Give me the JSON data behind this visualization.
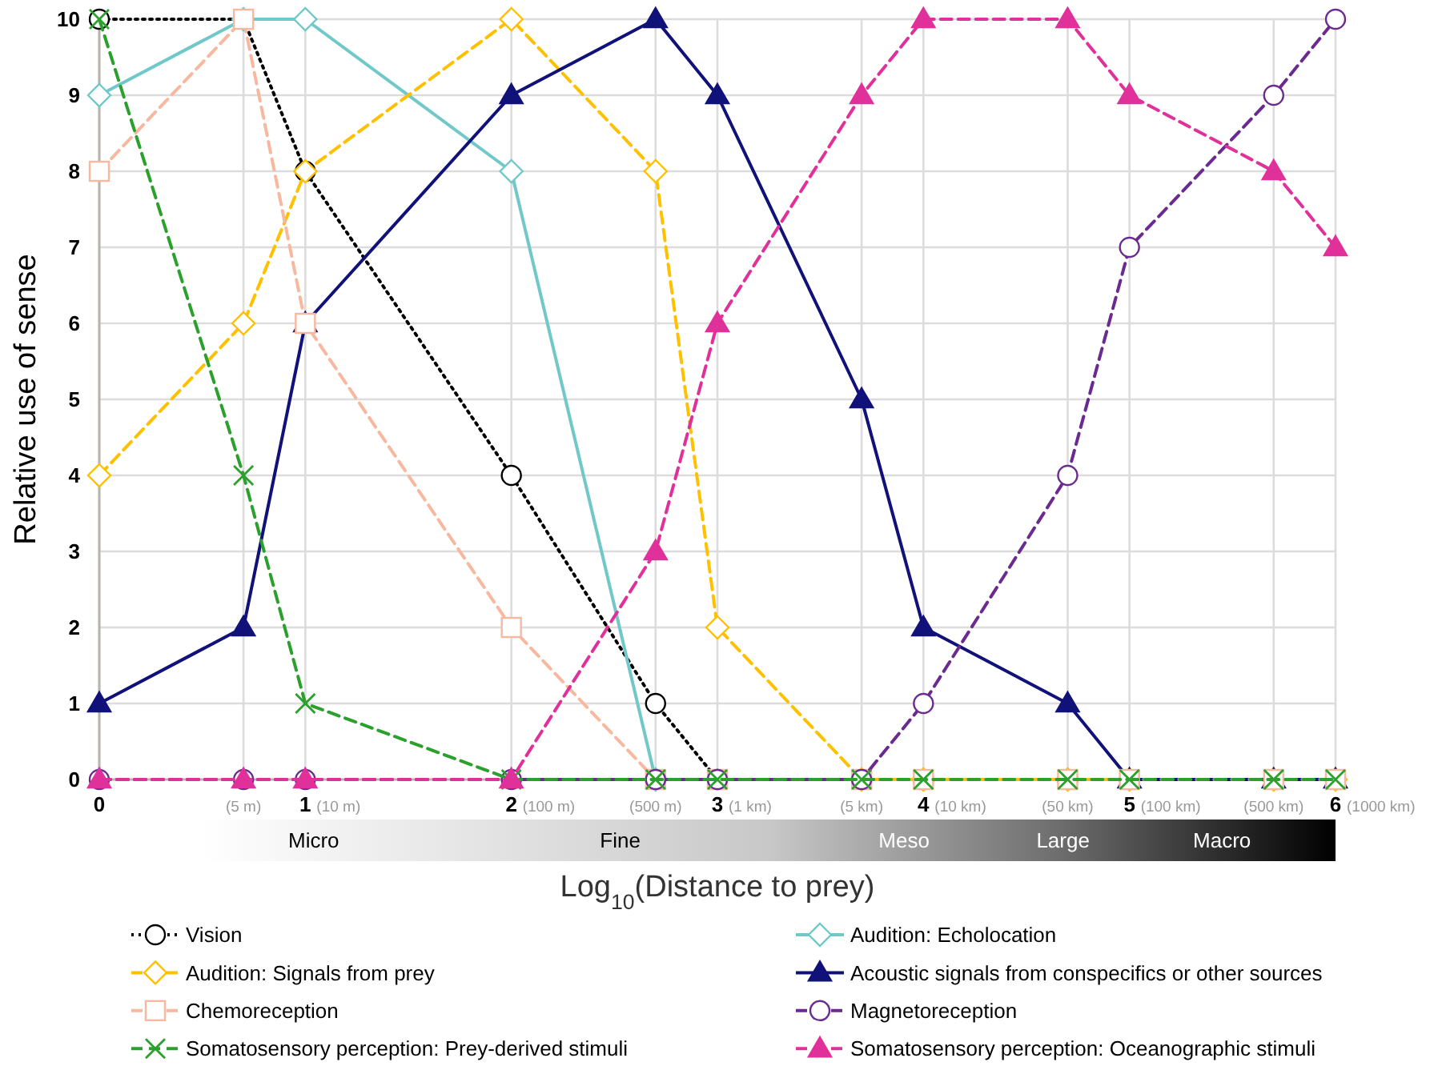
{
  "chart_data": {
    "type": "line",
    "xlabel": "Log$_{10}$(Distance to prey)",
    "ylabel": "Relative use of sense",
    "x": [
      0,
      0.7,
      1,
      2,
      2.7,
      3,
      3.7,
      4,
      4.7,
      5,
      5.7,
      6
    ],
    "xlim": [
      0,
      6
    ],
    "xticks": [
      0,
      {
        "value": 0.7,
        "label": null
      },
      1,
      2,
      {
        "value": 2.7,
        "label": null
      },
      3,
      {
        "value": 3.7,
        "label": null
      },
      4,
      {
        "value": 4.7,
        "label": null
      },
      5,
      {
        "value": 5.7,
        "label": null
      },
      6
    ],
    "ylim": [
      0,
      10
    ],
    "yticks": [
      0,
      1,
      2,
      3,
      4,
      5,
      6,
      7,
      8,
      9,
      10
    ],
    "grid": true,
    "legend": "bottom",
    "annotations": [
      "Micro",
      "Fine",
      "Meso",
      "Large",
      "Macro",
      "(5 m)",
      "(10 m)",
      "(100 m)",
      "(500  m)",
      "(1 km)",
      "(5 km)",
      "(10 km)",
      "(50 km)",
      "(100 km)",
      "(500 km)",
      "(1000 km)"
    ],
    "series": [
      {
        "name": "Vision",
        "color": "#000000",
        "marker": "circle",
        "line_style": "dotted",
        "values": [
          10,
          10,
          8,
          4,
          1,
          0,
          0,
          0,
          0,
          0,
          0,
          0
        ]
      },
      {
        "name": "Audition: Echolocation",
        "color": "#70c8c8",
        "marker": "diamond",
        "line_style": "solid",
        "values": [
          9,
          10,
          10,
          8,
          0,
          null,
          null,
          null,
          null,
          null,
          null,
          null
        ]
      },
      {
        "name": "Audition: Signals from prey",
        "color": "#ffc000",
        "marker": "diamond",
        "line_style": "dashed",
        "values": [
          4,
          6,
          8,
          10,
          8,
          2,
          0,
          0,
          0,
          0,
          0,
          0
        ]
      },
      {
        "name": "Acoustic signals from conspecifics or other sources",
        "color": "#10127a",
        "marker": "triangle",
        "line_style": "solid",
        "values": [
          1,
          2,
          6,
          9,
          10,
          9,
          5,
          2,
          1,
          0,
          0,
          0
        ]
      },
      {
        "name": "Chemoreception",
        "color": "#f8b8a0",
        "marker": "square",
        "line_style": "dashed",
        "values": [
          8,
          10,
          6,
          2,
          0,
          0,
          0,
          0,
          0,
          0,
          0,
          0
        ]
      },
      {
        "name": "Magnetoreception",
        "color": "#6a2a90",
        "marker": "circle",
        "line_style": "dashed",
        "values": [
          0,
          0,
          0,
          0,
          0,
          0,
          0,
          1,
          4,
          7,
          9,
          10
        ]
      },
      {
        "name": "Somatosensory perception: Prey-derived stimuli",
        "color": "#2ca02c",
        "marker": "cross",
        "line_style": "dashed",
        "values": [
          10,
          4,
          1,
          0,
          0,
          0,
          0,
          0,
          0,
          0,
          0,
          0
        ]
      },
      {
        "name": "Somatosensory perception: Oceanographic stimuli",
        "color": "#e0309a",
        "marker": "triangle",
        "line_style": "dashed",
        "values": [
          0,
          0,
          0,
          0,
          3,
          6,
          9,
          10,
          10,
          9,
          8,
          7
        ]
      }
    ]
  }
}
